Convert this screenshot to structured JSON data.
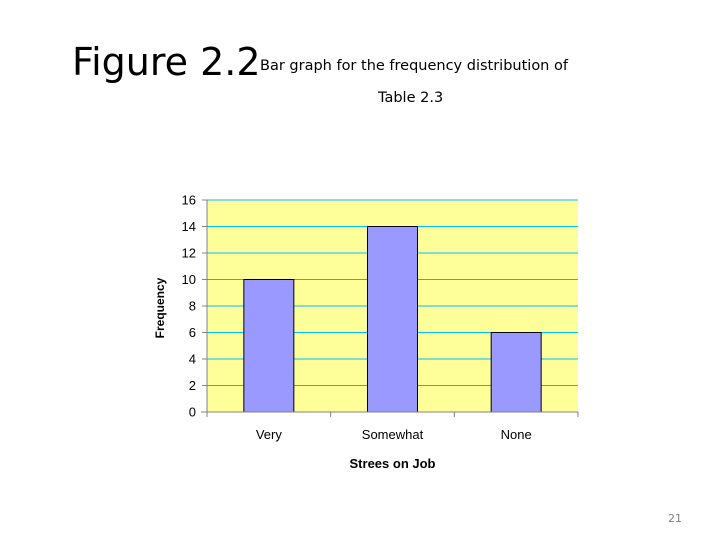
{
  "slide": {
    "title_main": "Figure 2.2",
    "title_sub_line1": "Bar graph for the frequency distribution of",
    "title_sub_line2": "Table 2.3",
    "page_number": "21"
  },
  "colors": {
    "plot_background": "#ffff99",
    "bar_fill": "#9999ff",
    "bar_stroke": "#000000",
    "gridline": "#00bfff",
    "axis": "#808080"
  },
  "chart_data": {
    "type": "bar",
    "categories": [
      "Very",
      "Somewhat",
      "None"
    ],
    "values": [
      10,
      14,
      6
    ],
    "title": "",
    "xlabel": "Strees on Job",
    "ylabel": "Frequency",
    "ylim": [
      0,
      16
    ],
    "yticks": [
      0,
      2,
      4,
      6,
      8,
      10,
      12,
      14,
      16
    ],
    "grid": true,
    "legend": "none"
  }
}
